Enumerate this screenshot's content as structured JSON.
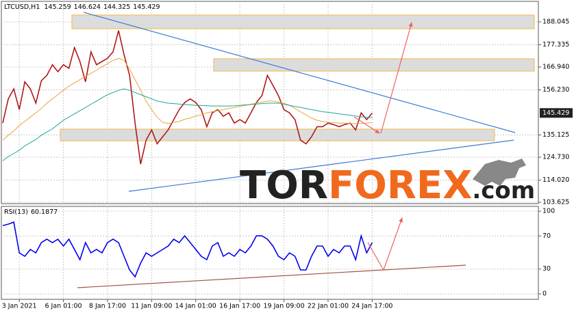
{
  "logo": {
    "part1": "TOR",
    "part2": "FOREX",
    "part3": ".com"
  },
  "chart_data": [
    {
      "type": "line",
      "title": "LTCUSD,H1",
      "ohlc": [
        145.259,
        146.624,
        144.325,
        145.429
      ],
      "categories": [
        null,
        null,
        null,
        "3 Jan 2021",
        null,
        null,
        null,
        null,
        null,
        null,
        null,
        "6 Jan 01:00",
        null,
        null,
        null,
        null,
        null,
        null,
        null,
        "8 Jan 17:00",
        null,
        null,
        null,
        null,
        null,
        null,
        null,
        "11 Jan 09:00",
        null,
        null,
        null,
        null,
        null,
        null,
        null,
        "14 Jan 01:00",
        null,
        null,
        null,
        null,
        null,
        null,
        null,
        "16 Jan 17:00",
        null,
        null,
        null,
        null,
        null,
        null,
        null,
        "19 Jan 09:00",
        null,
        null,
        null,
        null,
        null,
        null,
        null,
        "22 Jan 01:00",
        null,
        null,
        null,
        null,
        null,
        null,
        null,
        "24 Jan 17:00"
      ],
      "ylim": [
        102.99,
        197.64
      ],
      "yticks": [
        {
          "value": 103.625,
          "label": "103.625"
        },
        {
          "value": 114.02,
          "label": "114.020"
        },
        {
          "value": 124.73,
          "label": "124.730"
        },
        135.125,
        {
          "value": 156.23,
          "label": "156.230"
        },
        {
          "value": 166.94,
          "label": "166.940"
        },
        177.335,
        188.045
      ],
      "grid": true,
      "series": [
        {
          "color": "#b01818",
          "values": [
            140.7,
            152,
            156.7,
            147,
            160,
            156.7,
            150,
            160.5,
            163,
            168,
            164.7,
            168,
            166.3,
            176,
            169.5,
            160,
            174,
            168,
            169.5,
            171,
            174,
            184,
            172.7,
            163,
            140.7,
            121.5,
            132.7,
            137.5,
            131,
            134.3,
            137.5,
            142.3,
            147,
            150.3,
            152,
            150.3,
            147,
            139,
            145.5,
            147,
            143.9,
            145.5,
            140.7,
            142.3,
            140.7,
            145.5,
            150.3,
            153.5,
            163,
            158.3,
            153.5,
            147,
            145.5,
            142.3,
            132.7,
            131,
            134.3,
            139,
            139,
            140.7,
            140,
            139,
            140,
            140.7,
            137.5,
            145.5,
            142.3,
            145.4
          ]
        },
        {
          "color": "#e8a33a",
          "values": [
            132.7,
            135,
            137,
            139.5,
            141.5,
            143.5,
            145.5,
            147.5,
            150,
            152,
            154,
            156,
            158,
            159.5,
            161,
            162.5,
            164,
            165.5,
            167,
            168.5,
            170,
            171,
            170,
            166,
            161,
            156,
            151,
            147,
            143.5,
            141,
            140.5,
            141,
            141.5,
            142.5,
            143,
            144,
            144.5,
            145.5,
            146,
            146.5,
            147,
            147.5,
            148,
            148.5,
            149,
            149.5,
            150,
            150.5,
            151,
            151,
            150.5,
            150,
            149,
            147.5,
            146,
            144.5,
            143,
            142,
            141.5,
            141,
            141,
            140.7,
            140.7,
            140.5,
            140.5,
            140.5,
            140.7,
            141
          ]
        },
        {
          "color": "#1fa39a",
          "values": [
            123,
            125,
            126.5,
            128,
            130,
            131.5,
            133,
            135,
            136.5,
            138,
            140,
            142,
            143.5,
            145,
            146.5,
            148,
            149.5,
            151,
            152.5,
            154,
            155,
            156,
            156.7,
            156,
            155,
            154,
            153,
            152,
            151,
            150.5,
            150,
            149.8,
            149.6,
            149.4,
            149.2,
            149,
            148.9,
            148.8,
            148.7,
            148.7,
            148.7,
            148.7,
            148.8,
            149,
            149.2,
            149.4,
            149.6,
            149.8,
            150,
            150,
            150,
            149.5,
            149,
            148.5,
            148,
            147.5,
            147,
            146.5,
            146,
            145.7,
            145.4,
            145,
            144.7,
            144.4,
            144,
            143.7,
            143.4,
            143.2
          ]
        }
      ]
    },
    {
      "type": "line",
      "title": "RSI(13)",
      "current_value": 60.1877,
      "ylim": [
        -6.6,
        105.8
      ],
      "yticks": [
        0,
        30,
        70,
        100
      ],
      "grid": true,
      "series": [
        {
          "color": "#0000ee",
          "values": [
            82.6,
            84.3,
            86.8,
            49.6,
            45.5,
            53.7,
            49.6,
            62,
            66.1,
            62,
            66.1,
            57.9,
            66.1,
            53.7,
            41.3,
            62,
            49.6,
            53.7,
            49.6,
            62,
            66.1,
            62,
            45.5,
            28.9,
            20.7,
            37.2,
            49.6,
            45.5,
            49.6,
            53.7,
            57.9,
            66.1,
            62,
            70.2,
            62,
            53.7,
            45.5,
            41.3,
            57.9,
            62,
            45.5,
            49.6,
            45.5,
            53.7,
            49.6,
            57.9,
            70.2,
            70.2,
            66.1,
            57.9,
            45.5,
            41.3,
            49.6,
            45.5,
            28.9,
            28.9,
            45.5,
            57.9,
            57.9,
            45.5,
            53.7,
            49.6,
            57.9,
            57.9,
            41.3,
            70.2,
            49.6,
            62
          ]
        }
      ]
    }
  ]
}
